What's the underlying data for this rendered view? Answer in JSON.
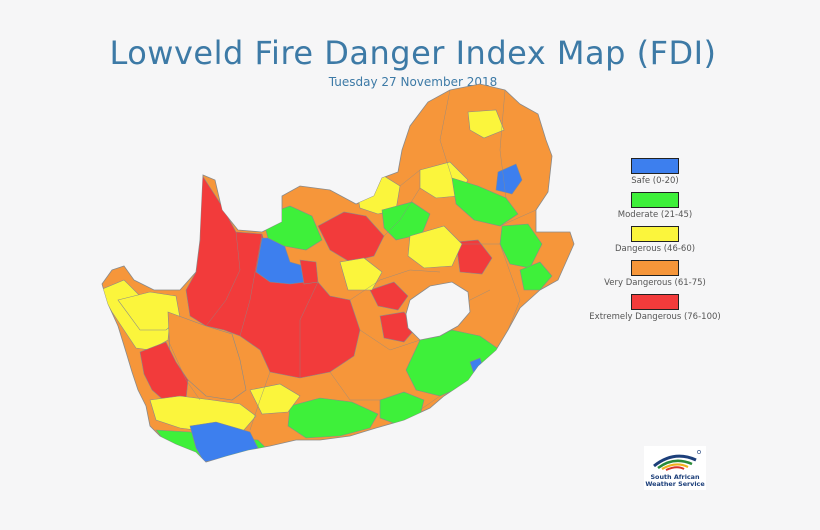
{
  "header": {
    "title": "Lowveld Fire Danger Index Map (FDI)",
    "date": "Tuesday 27 November 2018"
  },
  "colors": {
    "safe": "#3d7fee",
    "moderate": "#3ef03a",
    "dangerous": "#fbf53c",
    "very_dangerous": "#f6963a",
    "extremely_dangerous": "#f23b3b",
    "border": "#8a8a8a",
    "background": "#f6f6f7",
    "title": "#3d7aa6"
  },
  "legend": {
    "items": [
      {
        "label": "Safe (0-20)",
        "color": "#3d7fee"
      },
      {
        "label": "Moderate (21-45)",
        "color": "#3ef03a"
      },
      {
        "label": "Dangerous (46-60)",
        "color": "#fbf53c"
      },
      {
        "label": "Very Dangerous (61-75)",
        "color": "#f6963a"
      },
      {
        "label": "Extremely Dangerous (76-100)",
        "color": "#f23b3b"
      }
    ]
  },
  "logo": {
    "line1": "South African",
    "line2": "Weather Service",
    "icon": "saws-logo-icon"
  }
}
